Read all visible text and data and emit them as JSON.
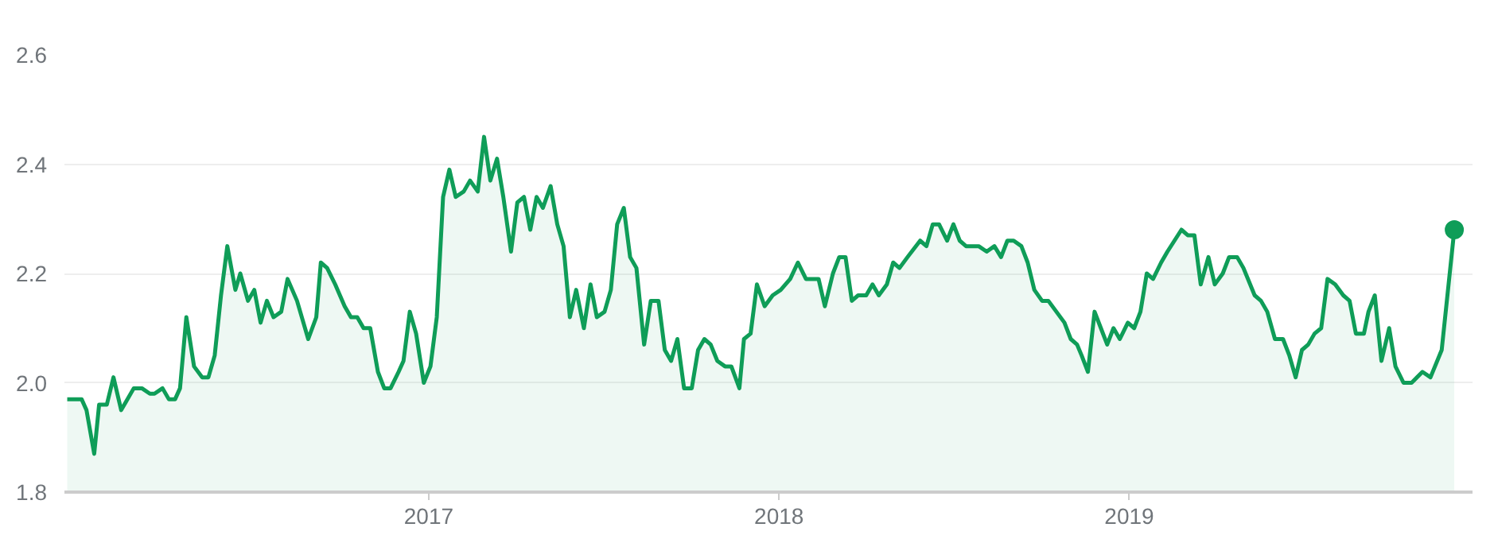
{
  "chart_data": {
    "type": "area",
    "xlim": [
      2015.96,
      2019.98
    ],
    "ylim": [
      1.8,
      2.6
    ],
    "xticks": [
      2017,
      2018,
      2019
    ],
    "yticks": [
      {
        "value": 1.8,
        "label": "1.8"
      },
      {
        "value": 2.0,
        "label": "2.0"
      },
      {
        "value": 2.2,
        "label": "2.2"
      },
      {
        "value": 2.4,
        "label": "2.4"
      },
      {
        "value": 2.6,
        "label": "2.6"
      }
    ],
    "grid": "y",
    "series": [
      {
        "color": "#0f9d58",
        "x": [
          2015.968,
          2016.009,
          2016.023,
          2016.045,
          2016.059,
          2016.081,
          2016.1,
          2016.122,
          2016.158,
          2016.181,
          2016.204,
          2016.217,
          2016.24,
          2016.258,
          2016.276,
          2016.29,
          2016.308,
          2016.33,
          2016.353,
          2016.371,
          2016.389,
          2016.407,
          2016.425,
          2016.448,
          2016.462,
          2016.484,
          2016.502,
          2016.52,
          2016.538,
          2016.557,
          2016.579,
          2016.597,
          2016.624,
          2016.656,
          2016.679,
          2016.692,
          2016.71,
          2016.733,
          2016.76,
          2016.778,
          2016.796,
          2016.814,
          2016.833,
          2016.855,
          2016.873,
          2016.891,
          2016.914,
          2016.928,
          2016.946,
          2016.964,
          2016.986,
          2017.005,
          2017.023,
          2017.041,
          2017.059,
          2017.077,
          2017.1,
          2017.118,
          2017.14,
          2017.158,
          2017.176,
          2017.195,
          2017.213,
          2017.235,
          2017.253,
          2017.272,
          2017.29,
          2017.308,
          2017.326,
          2017.348,
          2017.367,
          2017.385,
          2017.403,
          2017.421,
          2017.443,
          2017.462,
          2017.48,
          2017.502,
          2017.52,
          2017.538,
          2017.557,
          2017.575,
          2017.593,
          2017.615,
          2017.634,
          2017.656,
          2017.674,
          2017.692,
          2017.71,
          2017.729,
          2017.751,
          2017.769,
          2017.787,
          2017.805,
          2017.824,
          2017.846,
          2017.864,
          2017.887,
          2017.9,
          2017.919,
          2017.937,
          2017.959,
          2017.982,
          2018.005,
          2018.032,
          2018.054,
          2018.077,
          2018.113,
          2018.131,
          2018.154,
          2018.172,
          2018.19,
          2018.208,
          2018.226,
          2018.249,
          2018.267,
          2018.285,
          2018.308,
          2018.326,
          2018.344,
          2018.367,
          2018.403,
          2018.421,
          2018.439,
          2018.457,
          2018.48,
          2018.498,
          2018.516,
          2018.534,
          2018.57,
          2018.593,
          2018.615,
          2018.634,
          2018.652,
          2018.67,
          2018.692,
          2018.71,
          2018.729,
          2018.751,
          2018.769,
          2018.792,
          2018.815,
          2018.833,
          2018.851,
          2018.864,
          2018.882,
          2018.901,
          2018.919,
          2018.937,
          2018.955,
          2018.973,
          2018.996,
          2019.014,
          2019.032,
          2019.05,
          2019.068,
          2019.091,
          2019.109,
          2019.149,
          2019.167,
          2019.186,
          2019.204,
          2019.226,
          2019.244,
          2019.267,
          2019.285,
          2019.308,
          2019.326,
          2019.358,
          2019.376,
          2019.394,
          2019.416,
          2019.439,
          2019.457,
          2019.475,
          2019.493,
          2019.511,
          2019.529,
          2019.548,
          2019.566,
          2019.588,
          2019.611,
          2019.629,
          2019.647,
          2019.67,
          2019.683,
          2019.701,
          2019.72,
          2019.742,
          2019.76,
          2019.783,
          2019.806,
          2019.837,
          2019.86,
          2019.892,
          2019.928
        ],
        "values": [
          1.97,
          1.97,
          1.95,
          1.87,
          1.96,
          1.96,
          2.01,
          1.95,
          1.99,
          1.99,
          1.98,
          1.98,
          1.99,
          1.97,
          1.97,
          1.99,
          2.12,
          2.03,
          2.01,
          2.01,
          2.05,
          2.16,
          2.25,
          2.17,
          2.2,
          2.15,
          2.17,
          2.11,
          2.15,
          2.12,
          2.13,
          2.19,
          2.15,
          2.08,
          2.12,
          2.22,
          2.21,
          2.18,
          2.14,
          2.12,
          2.12,
          2.1,
          2.1,
          2.02,
          1.99,
          1.99,
          2.02,
          2.04,
          2.13,
          2.09,
          2.0,
          2.03,
          2.12,
          2.34,
          2.39,
          2.34,
          2.35,
          2.37,
          2.35,
          2.45,
          2.37,
          2.41,
          2.34,
          2.24,
          2.33,
          2.34,
          2.28,
          2.34,
          2.32,
          2.36,
          2.29,
          2.25,
          2.12,
          2.17,
          2.1,
          2.18,
          2.12,
          2.13,
          2.17,
          2.29,
          2.32,
          2.23,
          2.21,
          2.07,
          2.15,
          2.15,
          2.06,
          2.04,
          2.08,
          1.99,
          1.99,
          2.06,
          2.08,
          2.07,
          2.04,
          2.03,
          2.03,
          1.99,
          2.08,
          2.09,
          2.18,
          2.14,
          2.16,
          2.17,
          2.19,
          2.22,
          2.19,
          2.19,
          2.14,
          2.2,
          2.23,
          2.23,
          2.15,
          2.16,
          2.16,
          2.18,
          2.16,
          2.18,
          2.22,
          2.21,
          2.23,
          2.26,
          2.25,
          2.29,
          2.29,
          2.26,
          2.29,
          2.26,
          2.25,
          2.25,
          2.24,
          2.25,
          2.23,
          2.26,
          2.26,
          2.25,
          2.22,
          2.17,
          2.15,
          2.15,
          2.13,
          2.11,
          2.08,
          2.07,
          2.05,
          2.02,
          2.13,
          2.1,
          2.07,
          2.1,
          2.08,
          2.11,
          2.1,
          2.13,
          2.2,
          2.19,
          2.22,
          2.24,
          2.28,
          2.27,
          2.27,
          2.18,
          2.23,
          2.18,
          2.2,
          2.23,
          2.23,
          2.21,
          2.16,
          2.15,
          2.13,
          2.08,
          2.08,
          2.05,
          2.01,
          2.06,
          2.07,
          2.09,
          2.1,
          2.19,
          2.18,
          2.16,
          2.15,
          2.09,
          2.09,
          2.13,
          2.16,
          2.04,
          2.1,
          2.03,
          2.0,
          2.0,
          2.02,
          2.01,
          2.06,
          2.28
        ]
      },
      {
        "type": "scatter",
        "color": "#0f9d58",
        "marker": "circle",
        "x": [
          2019.928
        ],
        "values": [
          2.28
        ]
      }
    ]
  }
}
